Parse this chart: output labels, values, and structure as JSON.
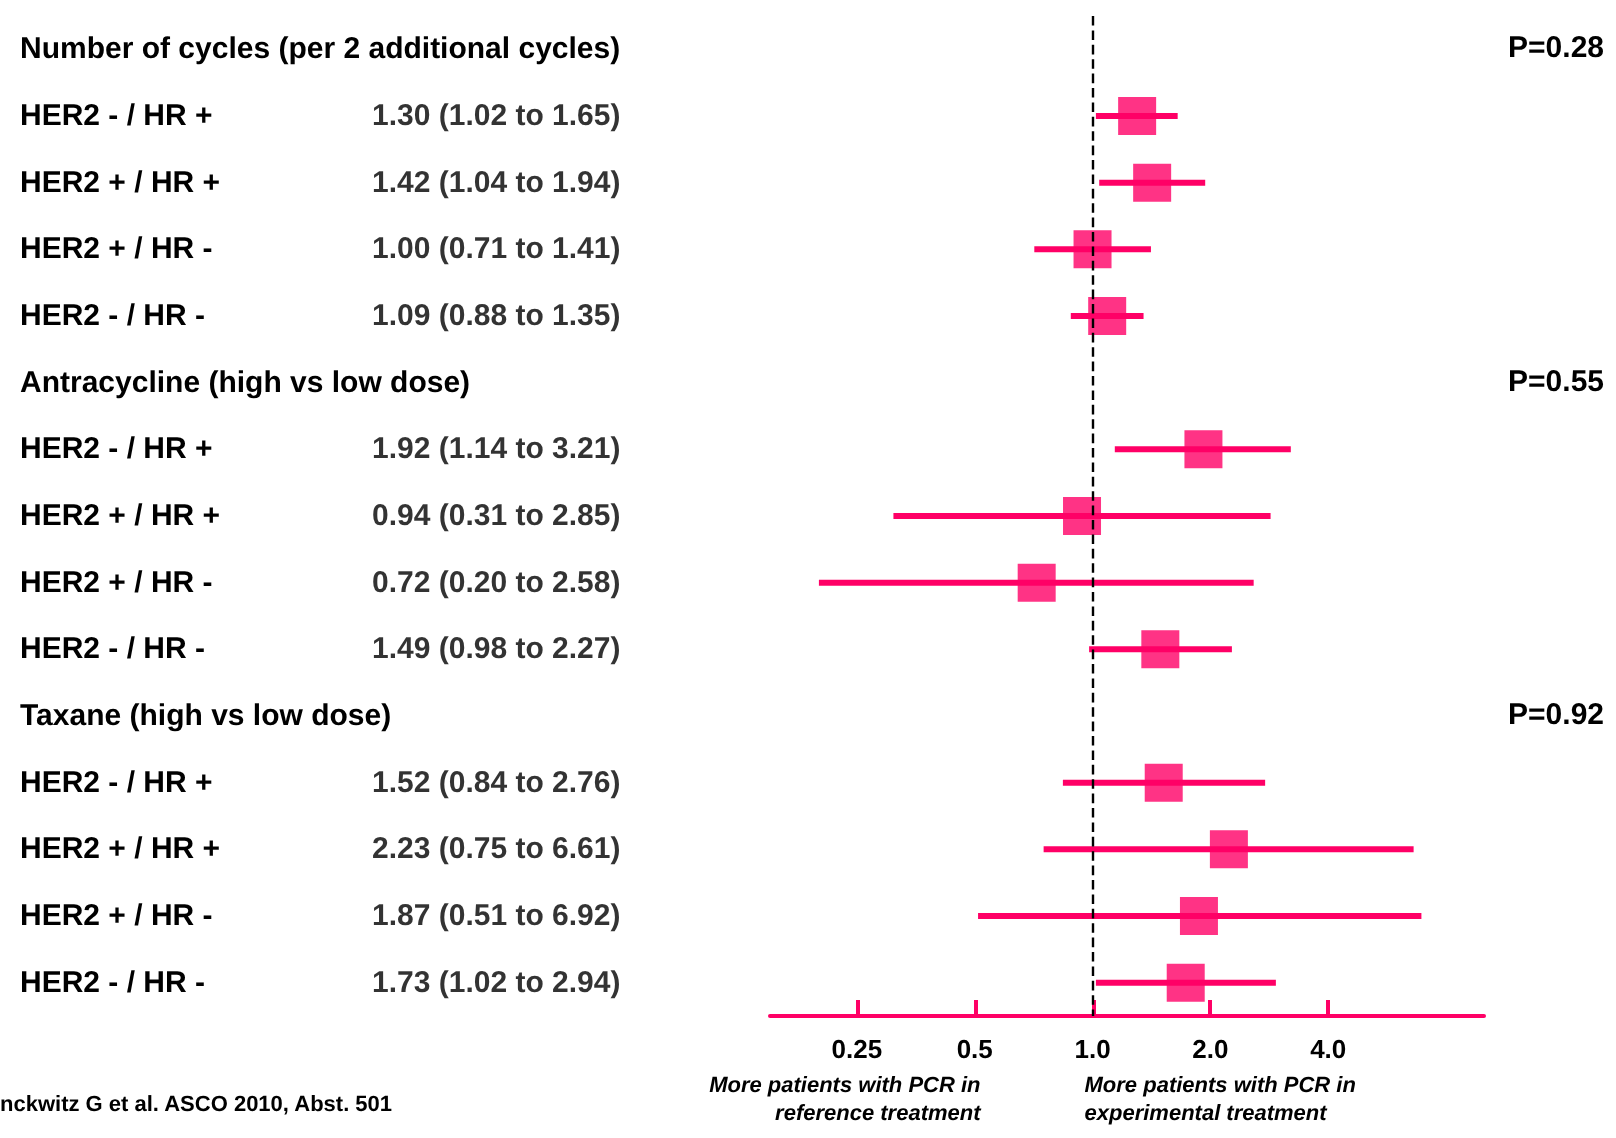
{
  "chart_data": {
    "type": "scatter",
    "orientation": "horizontal",
    "categories": [
      "Number of cycles (per 2 additional cycles)",
      "HER2 - / HR +",
      "HER2 + / HR +",
      "HER2 + / HR -",
      "HER2 - / HR -",
      "Antracycline (high vs low dose)",
      "HER2 - / HR +",
      "HER2 + / HR +",
      "HER2 + / HR -",
      "HER2 - / HR -",
      "Taxane (high vs low dose)",
      "HER2 - / HR +",
      "HER2 + / HR +",
      "HER2 + / HR -",
      "HER2 - / HR -"
    ],
    "values": [
      null,
      1.3,
      1.42,
      1.0,
      1.09,
      null,
      1.92,
      0.94,
      0.72,
      1.49,
      null,
      1.52,
      2.23,
      1.87,
      1.73
    ],
    "errors": [
      null,
      [
        1.02,
        1.65
      ],
      [
        1.04,
        1.94
      ],
      [
        0.71,
        1.41
      ],
      [
        0.88,
        1.35
      ],
      null,
      [
        1.14,
        3.21
      ],
      [
        0.31,
        2.85
      ],
      [
        0.2,
        2.58
      ],
      [
        0.98,
        2.27
      ],
      null,
      [
        0.84,
        2.76
      ],
      [
        0.75,
        6.61
      ],
      [
        0.51,
        6.92
      ],
      [
        1.02,
        2.94
      ]
    ],
    "value_labels": [
      null,
      "1.30 (1.02 to 1.65)",
      "1.42 (1.04 to 1.94)",
      "1.00 (0.71 to 1.41)",
      "1.09 (0.88 to 1.35)",
      null,
      "1.92 (1.14 to 3.21)",
      "0.94 (0.31 to 2.85)",
      "0.72 (0.20 to 2.58)",
      "1.49 (0.98 to 2.27)",
      null,
      "1.52 (0.84 to 2.76)",
      "2.23 (0.75 to 6.61)",
      "1.87 (0.51 to 6.92)",
      "1.73 (1.02 to 2.94)"
    ],
    "color": "#ff0066",
    "marker": "square",
    "log": "x",
    "xlim": [
      0.15,
      10
    ],
    "xticks": [
      0.25,
      0.5,
      {
        "value": 1,
        "label": "1.0"
      },
      {
        "value": 2,
        "label": "2.0"
      },
      {
        "value": 4,
        "label": "4.0"
      }
    ],
    "ref_lines": [
      {
        "axis": "x",
        "value": 1,
        "color": "#000000",
        "line_style": "dashed"
      }
    ],
    "grid": false,
    "annotations": [
      "P=0.28",
      "P=0.55",
      "P=0.92",
      "More patients with PCR in\nreference treatment",
      "More patients with PCR in\nexperimental treatment",
      "nckwitz G et al. ASCO 2010, Abst. 501"
    ]
  }
}
